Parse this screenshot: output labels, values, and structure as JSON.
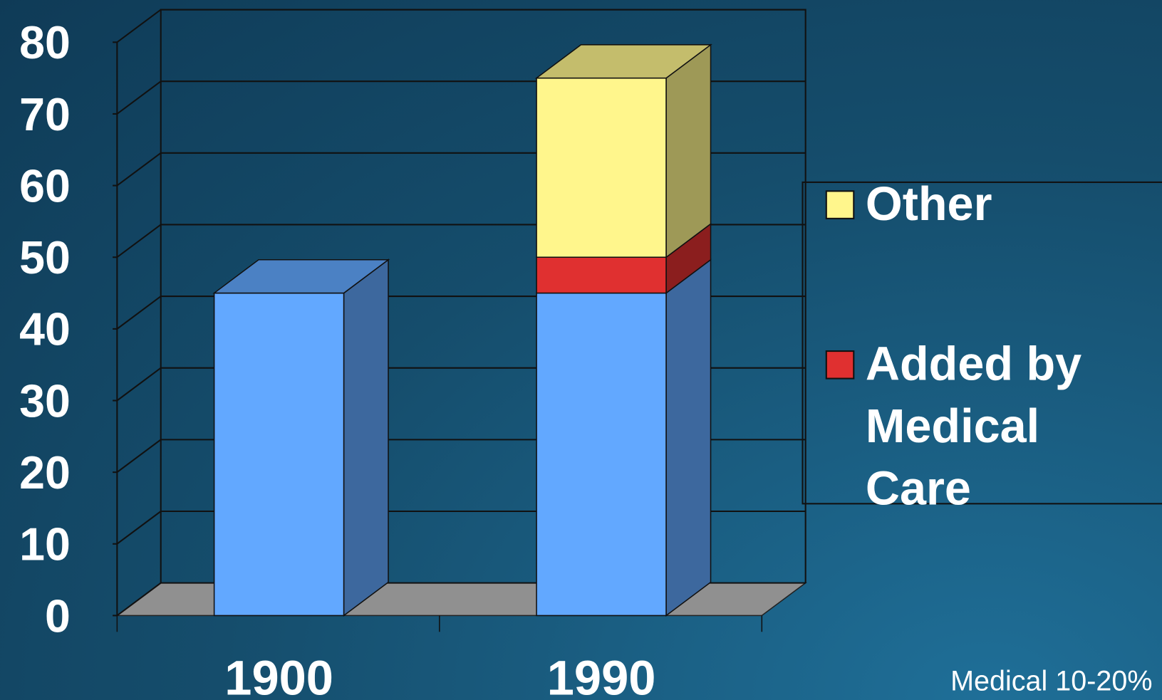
{
  "chart_data": {
    "type": "bar3d_stacked",
    "categories": [
      "1900",
      "1990"
    ],
    "series": [
      {
        "color": "#62a8ff",
        "values": [
          45,
          45
        ]
      },
      {
        "name": "Added by Medical Care",
        "color": "#e03030",
        "values": [
          null,
          5
        ]
      },
      {
        "name": "Other",
        "color": "#fff68c",
        "values": [
          null,
          25
        ]
      }
    ],
    "ylim": [
      0,
      80
    ],
    "yticks": [
      0,
      10,
      20,
      30,
      40,
      50,
      60,
      70,
      80
    ],
    "grid": true,
    "legend": "right",
    "annotation": "Medical 10-20%"
  }
}
